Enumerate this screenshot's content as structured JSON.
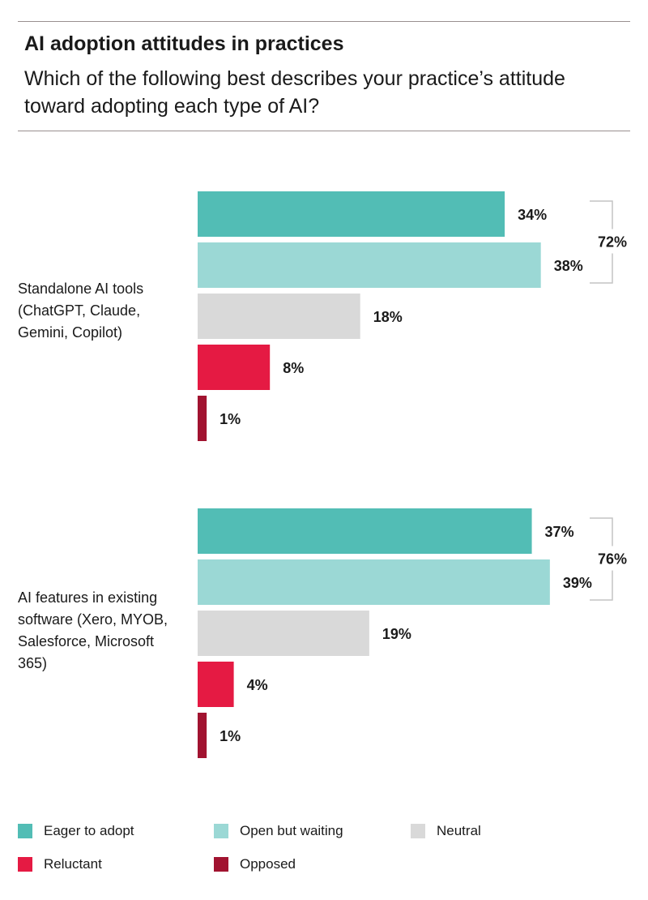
{
  "title": "AI adoption attitudes in practices",
  "subtitle": "Which of the following best describes your practice’s attitude toward adopting each type of AI?",
  "colors": {
    "eager": "#52bdb5",
    "open": "#9bd8d5",
    "neutral": "#d9d9d9",
    "reluctant": "#e51a43",
    "opposed": "#a11330",
    "bracket": "#c4c4c4"
  },
  "chart_data": {
    "type": "bar",
    "orientation": "horizontal",
    "title": "AI adoption attitudes in practices",
    "xlim": [
      0,
      60
    ],
    "series_names": [
      "Eager to adopt",
      "Open but waiting",
      "Neutral",
      "Reluctant",
      "Opposed"
    ],
    "groups": [
      {
        "label": "Standalone AI tools (ChatGPT, Claude, Gemini, Copilot)",
        "values": [
          34,
          38,
          18,
          8,
          1
        ],
        "value_labels": [
          "34%",
          "38%",
          "18%",
          "8%",
          "1%"
        ],
        "bracket_label": "72%"
      },
      {
        "label": "AI features in existing software (Xero, MYOB, Salesforce, Microsoft 365)",
        "values": [
          37,
          39,
          19,
          4,
          1
        ],
        "value_labels": [
          "37%",
          "39%",
          "19%",
          "4%",
          "1%"
        ],
        "bracket_label": "76%"
      }
    ]
  },
  "legend": [
    {
      "label": "Eager to adopt",
      "color": "#52bdb5"
    },
    {
      "label": "Open but waiting",
      "color": "#9bd8d5"
    },
    {
      "label": "Neutral",
      "color": "#d9d9d9"
    },
    {
      "label": "Reluctant",
      "color": "#e51a43"
    },
    {
      "label": "Opposed",
      "color": "#a11330"
    }
  ]
}
